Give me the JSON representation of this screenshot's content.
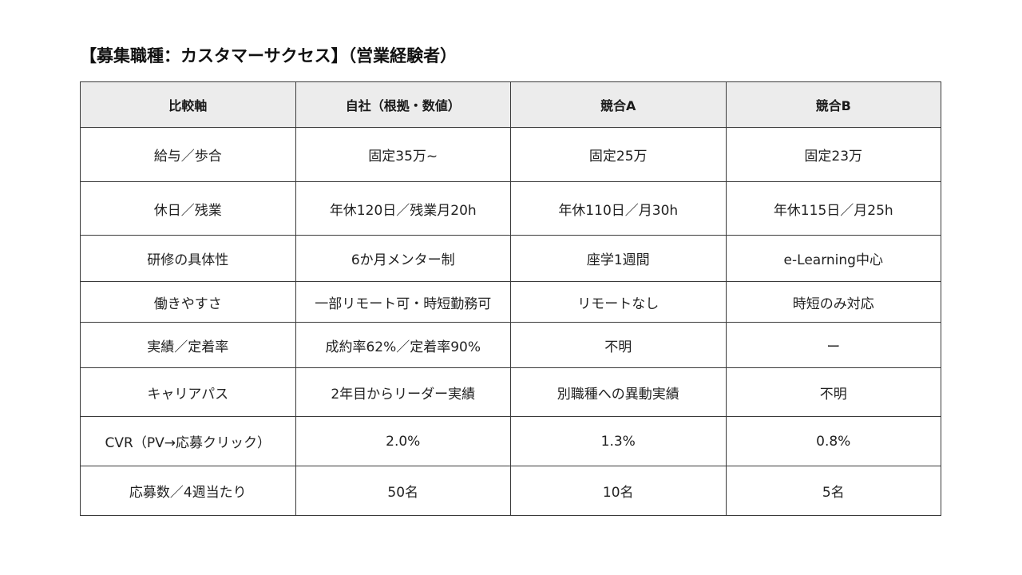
{
  "title": "【募集職種：カスタマーサクセス】（営業経験者）",
  "table": {
    "headers": [
      "比較軸",
      "自社（根拠・数値）",
      "競合A",
      "競合B"
    ],
    "rows": [
      [
        "給与／歩合",
        "固定35万~",
        "固定25万",
        "固定23万"
      ],
      [
        "休日／残業",
        "年休120日／残業月20h",
        "年休110日／月30h",
        "年休115日／月25h"
      ],
      [
        "研修の具体性",
        "6か月メンター制",
        "座学1週間",
        "e-Learning中心"
      ],
      [
        "働きやすさ",
        "一部リモート可・時短勤務可",
        "リモートなし",
        "時短のみ対応"
      ],
      [
        "実績／定着率",
        "成約率62%／定着率90%",
        "不明",
        "ー"
      ],
      [
        "キャリアパス",
        "2年目からリーダー実績",
        "別職種への異動実績",
        "不明"
      ],
      [
        "CVR（PV→応募クリック）",
        "2.0%",
        "1.3%",
        "0.8%"
      ],
      [
        "応募数／4週当たり",
        "50名",
        "10名",
        "5名"
      ]
    ]
  },
  "colors": {
    "header_bg": "#ececec",
    "border": "#3a3a3a",
    "text": "#1a1a1a"
  }
}
